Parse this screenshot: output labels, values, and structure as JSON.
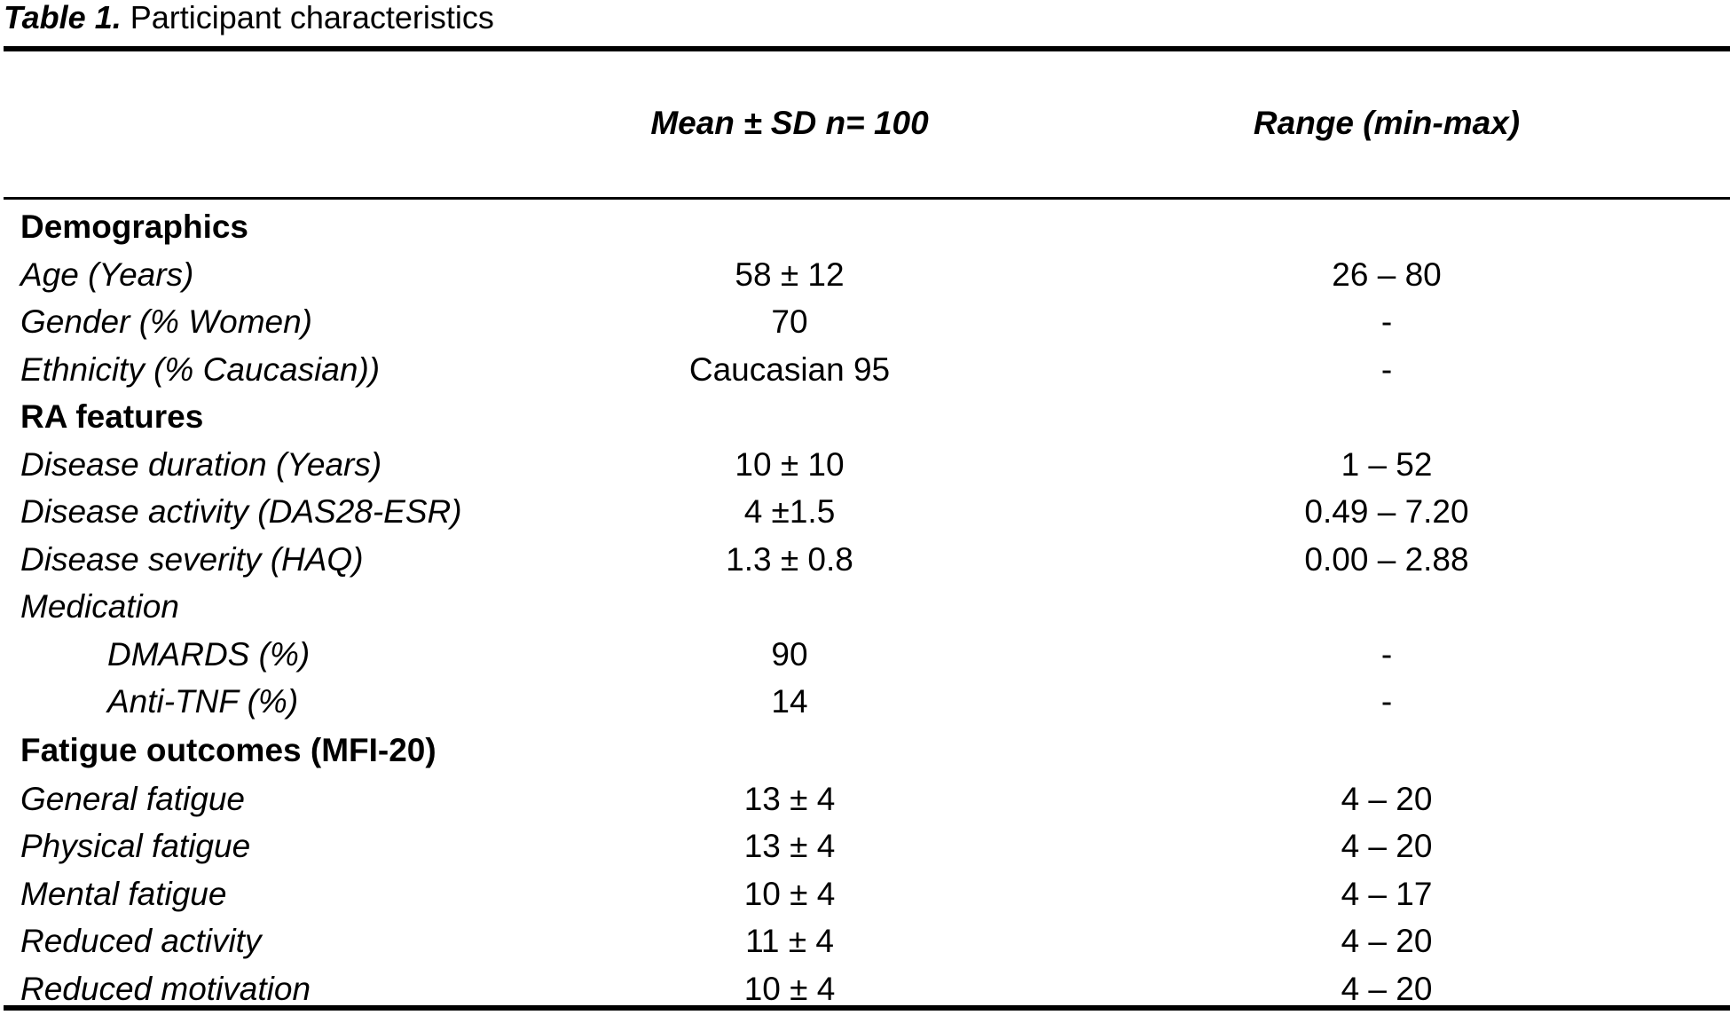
{
  "caption": {
    "label": "Table 1.",
    "title": "Participant characteristics"
  },
  "columns": {
    "mean": "Mean ± SD n= 100",
    "range": "Range (min-max)"
  },
  "rows": [
    {
      "type": "section",
      "label": "Demographics",
      "mean": "",
      "range": ""
    },
    {
      "type": "item",
      "label": "Age (Years)",
      "mean": "58 ± 12",
      "range": "26 – 80"
    },
    {
      "type": "item",
      "label": "Gender (% Women)",
      "mean": "70",
      "range": "-"
    },
    {
      "type": "item",
      "label": "Ethnicity (% Caucasian))",
      "mean": "Caucasian 95",
      "range": "-"
    },
    {
      "type": "section",
      "label": "RA features",
      "mean": "",
      "range": ""
    },
    {
      "type": "item",
      "label": "Disease duration (Years)",
      "mean": "10 ± 10",
      "range": "1 – 52"
    },
    {
      "type": "item",
      "label": "Disease activity (DAS28-ESR)",
      "mean": "4 ±1.5",
      "range": "0.49 – 7.20"
    },
    {
      "type": "item",
      "label": "Disease severity (HAQ)",
      "mean": "1.3 ± 0.8",
      "range": "0.00 – 2.88"
    },
    {
      "type": "item",
      "label": "Medication",
      "mean": "",
      "range": ""
    },
    {
      "type": "indent",
      "label": "DMARDS (%)",
      "mean": "90",
      "range": "-"
    },
    {
      "type": "indent",
      "label": "Anti-TNF (%)",
      "mean": "14",
      "range": "-"
    },
    {
      "type": "section",
      "label": "Fatigue outcomes (MFI-20)",
      "mean": "",
      "range": ""
    },
    {
      "type": "item",
      "label": "General fatigue",
      "mean": "13 ± 4",
      "range": "4 – 20"
    },
    {
      "type": "item",
      "label": "Physical fatigue",
      "mean": "13 ± 4",
      "range": "4 – 20"
    },
    {
      "type": "item",
      "label": "Mental fatigue",
      "mean": "10 ± 4",
      "range": "4 – 17"
    },
    {
      "type": "item",
      "label": "Reduced activity",
      "mean": "11 ± 4",
      "range": "4 – 20"
    },
    {
      "type": "item",
      "label": "Reduced motivation",
      "mean": "10 ± 4",
      "range": "4 – 20"
    }
  ]
}
